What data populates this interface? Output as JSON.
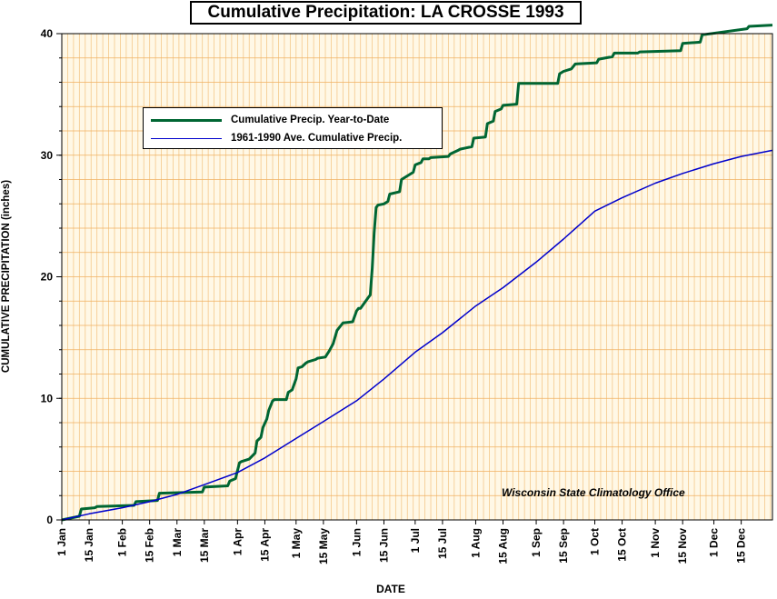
{
  "chart_data": {
    "type": "line",
    "title": "Cumulative Precipitation: LA CROSSE 1993",
    "xlabel": "DATE",
    "ylabel": "CUMULATIVE PRECIPITATION (inches)",
    "ylim": [
      0,
      40
    ],
    "xlim": [
      1,
      365
    ],
    "yticks": [
      "0",
      "10",
      "20",
      "30",
      "40"
    ],
    "ytick_values": [
      0,
      10,
      20,
      30,
      40
    ],
    "xticks": [
      "1 Jan",
      "15 Jan",
      "1 Feb",
      "15 Feb",
      "1 Mar",
      "15 Mar",
      "1 Apr",
      "15 Apr",
      "1 May",
      "15 May",
      "1 Jun",
      "15 Jun",
      "1 Jul",
      "15 Jul",
      "1 Aug",
      "15 Aug",
      "1 Sep",
      "15 Sep",
      "1 Oct",
      "15 Oct",
      "1 Nov",
      "15 Nov",
      "1 Dec",
      "15 Dec"
    ],
    "xtick_days": [
      1,
      15,
      32,
      46,
      60,
      74,
      91,
      105,
      121,
      135,
      152,
      166,
      182,
      196,
      213,
      227,
      244,
      258,
      274,
      288,
      305,
      319,
      335,
      349
    ],
    "grid": true,
    "legend_position": "top-left",
    "annotation": "Wisconsin State Climatology Office",
    "series": [
      {
        "name": "Cumulative Precip. Year-to-Date",
        "color": "#006633",
        "x": [
          1,
          10,
          11,
          18,
          19,
          38,
          39,
          50,
          51,
          73,
          74,
          86,
          87,
          90,
          92,
          93,
          97,
          100,
          101,
          103,
          104,
          106,
          107,
          109,
          110,
          116,
          117,
          119,
          121,
          122,
          124,
          126,
          127,
          131,
          132,
          136,
          138,
          140,
          142,
          144,
          145,
          150,
          152,
          153,
          154,
          158,
          159,
          160,
          161,
          162,
          163,
          166,
          168,
          169,
          174,
          175,
          178,
          181,
          182,
          185,
          186,
          189,
          190,
          199,
          200,
          204,
          205,
          211,
          212,
          218,
          219,
          222,
          223,
          226,
          227,
          234,
          235,
          237,
          238,
          255,
          256,
          258,
          262,
          263,
          264,
          275,
          276,
          283,
          284,
          296,
          297,
          318,
          319,
          328,
          329,
          352,
          353,
          365
        ],
        "y": [
          0,
          0.3,
          0.9,
          1.0,
          1.1,
          1.2,
          1.5,
          1.6,
          2.2,
          2.3,
          2.7,
          2.8,
          3.2,
          3.4,
          4.7,
          4.8,
          5.0,
          5.5,
          6.5,
          6.8,
          7.6,
          8.3,
          9.0,
          9.8,
          9.9,
          9.9,
          10.5,
          10.7,
          11.6,
          12.5,
          12.6,
          12.9,
          13.0,
          13.2,
          13.3,
          13.4,
          13.9,
          14.5,
          15.6,
          16.0,
          16.2,
          16.3,
          17.2,
          17.4,
          17.4,
          18.3,
          18.5,
          20.7,
          23.6,
          25.7,
          25.9,
          26.0,
          26.2,
          26.8,
          27.0,
          28.0,
          28.3,
          28.6,
          29.2,
          29.4,
          29.7,
          29.7,
          29.8,
          29.9,
          30.1,
          30.4,
          30.5,
          30.7,
          31.4,
          31.5,
          32.6,
          32.8,
          33.6,
          33.8,
          34.1,
          34.2,
          35.9,
          35.9,
          35.9,
          35.9,
          36.7,
          36.9,
          37.1,
          37.3,
          37.5,
          37.6,
          37.9,
          38.1,
          38.4,
          38.4,
          38.5,
          38.6,
          39.2,
          39.3,
          39.9,
          40.4,
          40.6,
          40.7
        ]
      },
      {
        "name": "1961-1990 Ave. Cumulative Precip.",
        "color": "#0000cc",
        "x": [
          1,
          15,
          32,
          46,
          60,
          74,
          91,
          105,
          121,
          135,
          152,
          166,
          182,
          196,
          213,
          227,
          244,
          258,
          274,
          288,
          305,
          319,
          335,
          349,
          365
        ],
        "y": [
          0,
          0.5,
          1.0,
          1.5,
          2.1,
          2.9,
          3.9,
          5.1,
          6.7,
          8.1,
          9.8,
          11.6,
          13.8,
          15.4,
          17.6,
          19.1,
          21.2,
          23.1,
          25.4,
          26.5,
          27.7,
          28.5,
          29.3,
          29.9,
          30.4
        ]
      }
    ]
  }
}
